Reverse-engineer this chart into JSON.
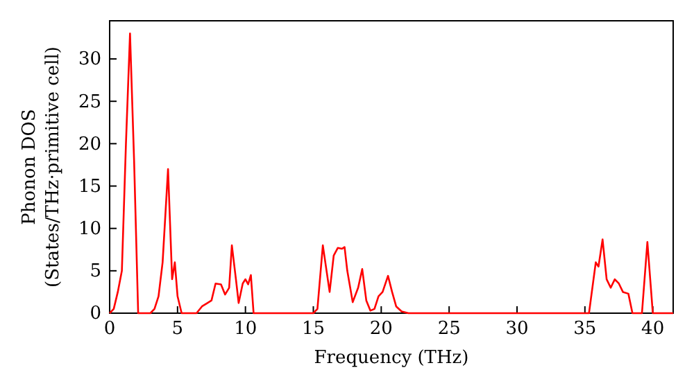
{
  "chart_data": {
    "type": "line",
    "xlabel": "Frequency (THz)",
    "ylabel": "Phonon DOS\n(States/THz·primitive cell)",
    "xlim": [
      0,
      41.5
    ],
    "ylim": [
      0,
      34.5
    ],
    "xticks": [
      0,
      5,
      10,
      15,
      20,
      25,
      30,
      35,
      40
    ],
    "yticks": [
      0,
      5,
      10,
      15,
      20,
      25,
      30
    ],
    "grid": false,
    "series": [
      {
        "color": "#ff0000",
        "x": [
          0,
          0.3,
          0.6,
          0.9,
          1.2,
          1.5,
          1.8,
          2.1,
          2.5,
          3.0,
          3.3,
          3.6,
          3.9,
          4.3,
          4.6,
          4.8,
          5.0,
          5.3,
          6.0,
          6.4,
          6.8,
          7.2,
          7.5,
          7.8,
          8.2,
          8.5,
          8.8,
          9.0,
          9.3,
          9.5,
          9.8,
          10.0,
          10.2,
          10.4,
          10.6,
          12,
          15.0,
          15.3,
          15.7,
          16.2,
          16.5,
          16.8,
          17.1,
          17.3,
          17.5,
          17.9,
          18.3,
          18.6,
          18.9,
          19.2,
          19.5,
          19.8,
          20.1,
          20.5,
          20.8,
          21.1,
          21.5,
          22,
          30,
          35.3,
          35.8,
          36.0,
          36.3,
          36.6,
          36.9,
          37.2,
          37.5,
          37.8,
          38.2,
          38.5,
          39.2,
          39.6,
          40.0,
          41.5
        ],
        "values": [
          0,
          0.5,
          2.5,
          5,
          20,
          33,
          18,
          0,
          0,
          0,
          0.5,
          2,
          6,
          17,
          4,
          6,
          2,
          0,
          0,
          0,
          0.8,
          1.2,
          1.5,
          3.5,
          3.4,
          2.2,
          3,
          8,
          4,
          1.2,
          3.5,
          4,
          3.4,
          4.5,
          0,
          0,
          0,
          0.5,
          8,
          2.5,
          6.8,
          7.7,
          7.6,
          7.8,
          5,
          1.3,
          3,
          5.2,
          1.5,
          0.3,
          0.5,
          2,
          2.5,
          4.4,
          2.5,
          0.8,
          0.2,
          0,
          0,
          0,
          6,
          5.5,
          8.7,
          4,
          3,
          4,
          3.5,
          2.5,
          2.3,
          0,
          0,
          8.4,
          0,
          0
        ]
      }
    ]
  }
}
